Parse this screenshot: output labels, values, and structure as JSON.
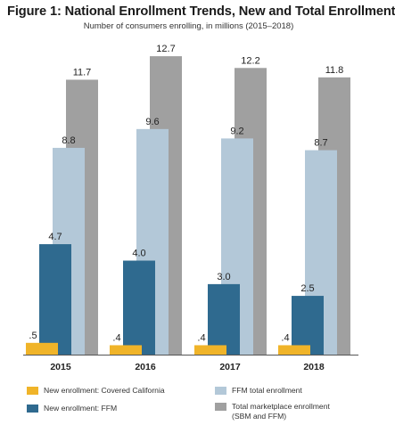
{
  "chart_data": {
    "type": "bar",
    "title": "Figure 1: National Enrollment Trends, New and Total Enrollment",
    "subtitle": "Number of consumers enrolling, in millions (2015–2018)",
    "categories": [
      "2015",
      "2016",
      "2017",
      "2018"
    ],
    "series": [
      {
        "name": "New enrollment: Covered California",
        "color": "#f0b429",
        "values": [
          0.5,
          0.4,
          0.4,
          0.4
        ],
        "labels": [
          ".5",
          ".4",
          ".4",
          ".4"
        ]
      },
      {
        "name": "New enrollment: FFM",
        "color": "#2f6a8f",
        "values": [
          4.7,
          4.0,
          3.0,
          2.5
        ],
        "labels": [
          "4.7",
          "4.0",
          "3.0",
          "2.5"
        ]
      },
      {
        "name": "FFM total enrollment",
        "color": "#b3c8d8",
        "values": [
          8.8,
          9.6,
          9.2,
          8.7
        ],
        "labels": [
          "8.8",
          "9.6",
          "9.2",
          "8.7"
        ]
      },
      {
        "name": "Total marketplace enrollment (SBM and FFM)",
        "color": "#a0a0a0",
        "values": [
          11.7,
          12.7,
          12.2,
          11.8
        ],
        "labels": [
          "11.7",
          "12.7",
          "12.2",
          "11.8"
        ]
      }
    ],
    "ylim": [
      0,
      13.5
    ],
    "grid": false,
    "legend_placement": "bottom"
  }
}
